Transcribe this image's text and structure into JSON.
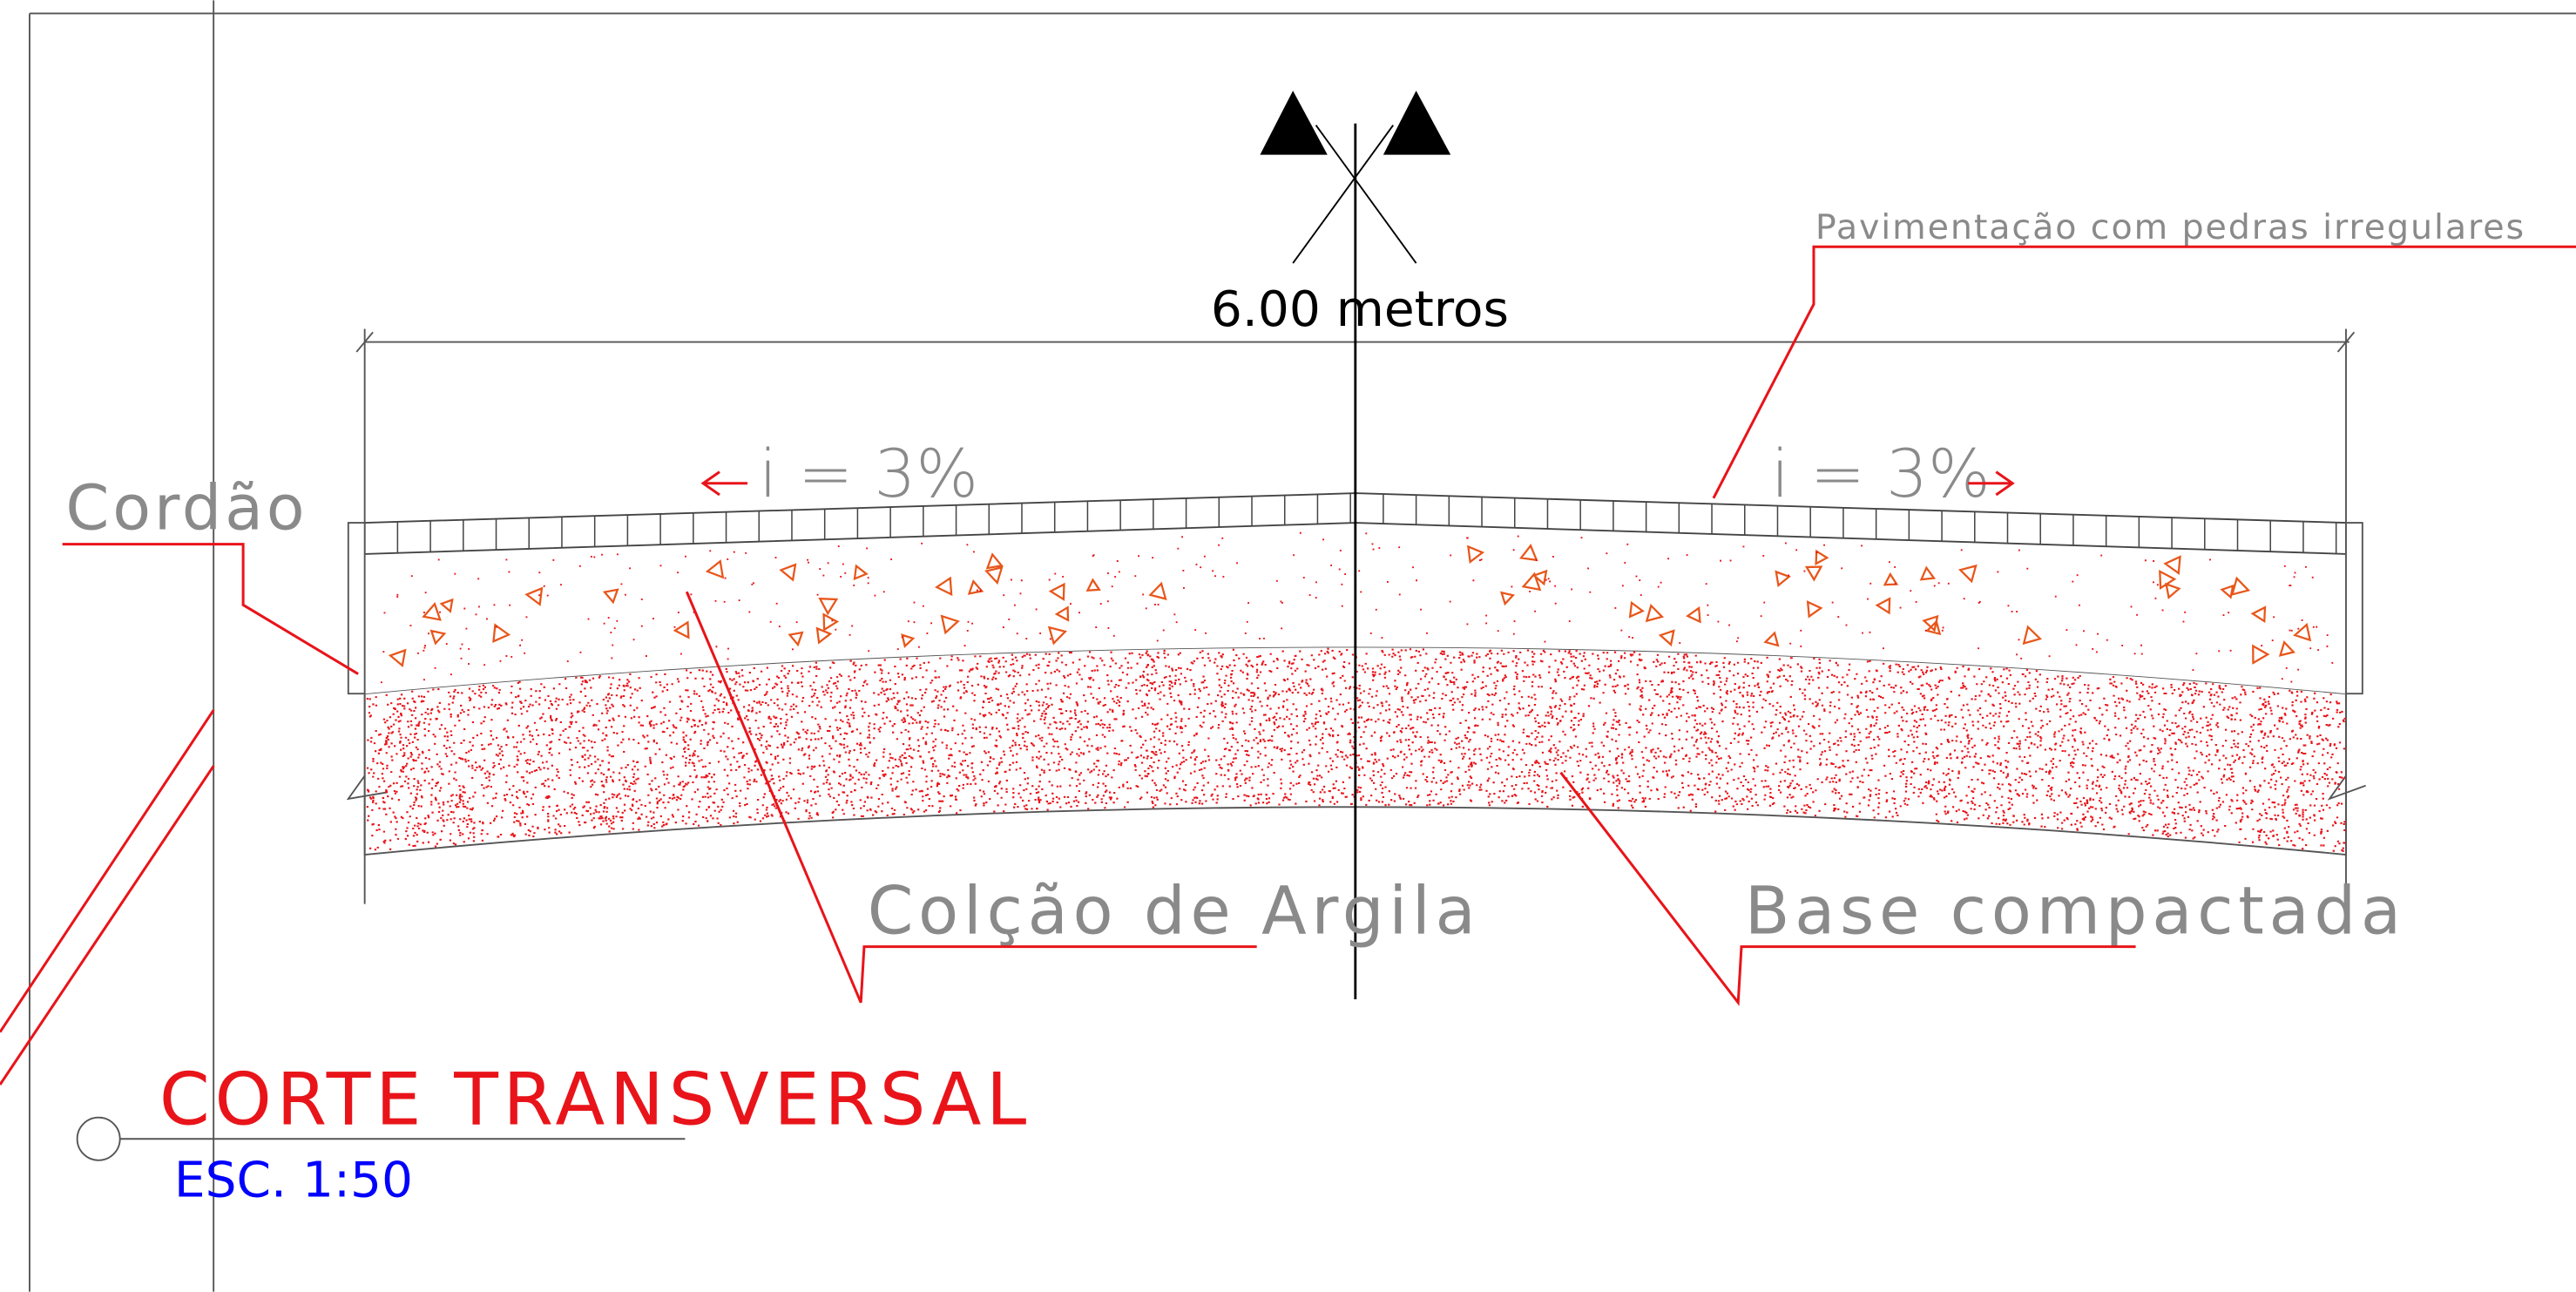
{
  "drawing": {
    "slope_label_left": "i = 3%",
    "slope_label_right": "i = 3%",
    "width_label": "6.00 metros",
    "labels": {
      "paving": "Pavimentação com pedras irregulares",
      "curb": "Cordão",
      "clay_bed": "Colção de Argila",
      "base": "Base compactada"
    },
    "title": "CORTE TRANSVERSAL",
    "scale": "ESC. 1:50"
  }
}
